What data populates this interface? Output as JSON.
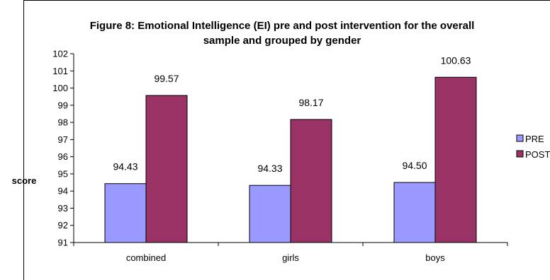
{
  "chart_data": {
    "type": "bar",
    "title_lines": [
      "Figure 8: Emotional Intelligence (EI) pre and post intervention for the overall",
      "sample and grouped by gender"
    ],
    "ylabel": "score",
    "ylim": [
      91,
      102
    ],
    "yticks": [
      91,
      92,
      93,
      94,
      95,
      96,
      97,
      98,
      99,
      100,
      101,
      102
    ],
    "categories": [
      "combined",
      "girls",
      "boys"
    ],
    "series": [
      {
        "name": "PRE",
        "values": [
          94.43,
          94.33,
          94.5
        ],
        "labels": [
          "94.43",
          "94.33",
          "94.50"
        ],
        "color": "#9999FF"
      },
      {
        "name": "POST",
        "values": [
          99.57,
          98.17,
          100.63
        ],
        "labels": [
          "99.57",
          "98.17",
          "100.63"
        ],
        "color": "#993366"
      }
    ],
    "legend": "right",
    "grid": false
  }
}
